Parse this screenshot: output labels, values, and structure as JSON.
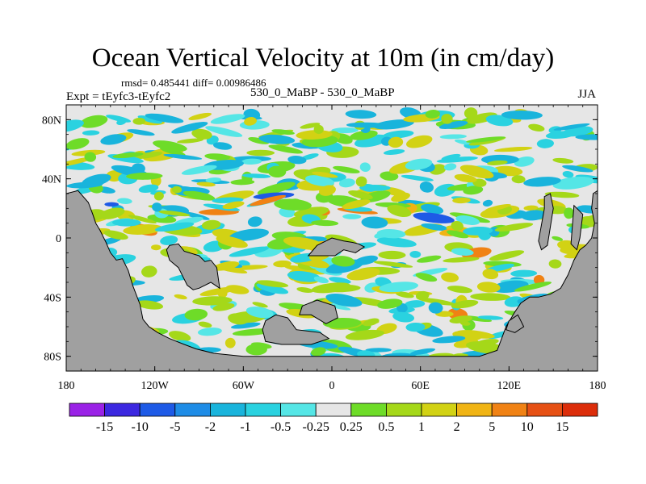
{
  "chart_data": {
    "type": "heatmap",
    "title": "Ocean Vertical Velocity at 10m (in cm/day)",
    "stats_line": "rmsd= 0.485441 diff= 0.00986486",
    "experiment_label": "Expt = tEyfc3-tEyfc2",
    "case_label": "530_0_MaBP - 530_0_MaBP",
    "season": "JJA",
    "x_range": [
      -180,
      180
    ],
    "y_range": [
      -90,
      90
    ],
    "x_ticks": [
      {
        "value": -180,
        "label": "180"
      },
      {
        "value": -120,
        "label": "120W"
      },
      {
        "value": -60,
        "label": "60W"
      },
      {
        "value": 0,
        "label": "0"
      },
      {
        "value": 60,
        "label": "60E"
      },
      {
        "value": 120,
        "label": "120E"
      },
      {
        "value": 180,
        "label": "180"
      }
    ],
    "y_ticks": [
      {
        "value": 80,
        "label": "80N"
      },
      {
        "value": 40,
        "label": "40N"
      },
      {
        "value": 0,
        "label": "0"
      },
      {
        "value": -40,
        "label": "40S"
      },
      {
        "value": -80,
        "label": "80S"
      }
    ],
    "colorbar": {
      "levels": [
        "-15",
        "-10",
        "-5",
        "-2",
        "-1",
        "-0.5",
        "-0.25",
        "0.25",
        "0.5",
        "1",
        "2",
        "5",
        "10",
        "15"
      ],
      "colors": [
        "#9a22e6",
        "#3c28e0",
        "#1e5ae6",
        "#1e8ce6",
        "#19b4dc",
        "#2ad2e0",
        "#55e6e6",
        "#e6e6e6",
        "#6edc28",
        "#a5d819",
        "#d2d214",
        "#f0b414",
        "#f08214",
        "#e65014",
        "#dc2d0a"
      ]
    },
    "land_color": "#a0a0a0",
    "land_polygons": [
      [
        [
          -180,
          -90
        ],
        [
          -180,
          30
        ],
        [
          -172,
          32
        ],
        [
          -165,
          24
        ],
        [
          -162,
          16
        ],
        [
          -160,
          10
        ],
        [
          -157,
          5
        ],
        [
          -153,
          -3
        ],
        [
          -150,
          -10
        ],
        [
          -146,
          -15
        ],
        [
          -142,
          -14
        ],
        [
          -138,
          -22
        ],
        [
          -135,
          -32
        ],
        [
          -130,
          -45
        ],
        [
          -128,
          -55
        ],
        [
          -124,
          -60
        ],
        [
          -118,
          -64
        ],
        [
          -110,
          -68
        ],
        [
          -100,
          -72
        ],
        [
          -92,
          -75
        ],
        [
          -80,
          -78
        ],
        [
          -60,
          -80
        ],
        [
          -40,
          -80
        ],
        [
          -20,
          -80
        ],
        [
          0,
          -80
        ],
        [
          20,
          -80
        ],
        [
          40,
          -80
        ],
        [
          60,
          -80
        ],
        [
          80,
          -80
        ],
        [
          100,
          -80
        ],
        [
          112,
          -76
        ],
        [
          115,
          -68
        ],
        [
          118,
          -60
        ],
        [
          124,
          -50
        ],
        [
          128,
          -44
        ],
        [
          134,
          -40
        ],
        [
          140,
          -40
        ],
        [
          148,
          -38
        ],
        [
          155,
          -34
        ],
        [
          160,
          -25
        ],
        [
          164,
          -15
        ],
        [
          168,
          -8
        ],
        [
          172,
          -5
        ],
        [
          176,
          0
        ],
        [
          178,
          10
        ],
        [
          176,
          20
        ],
        [
          177,
          30
        ],
        [
          180,
          32
        ],
        [
          180,
          -90
        ]
      ],
      [
        [
          -110,
          -5
        ],
        [
          -104,
          -4
        ],
        [
          -100,
          -9
        ],
        [
          -90,
          -12
        ],
        [
          -86,
          -16
        ],
        [
          -82,
          -15
        ],
        [
          -78,
          -20
        ],
        [
          -76,
          -34
        ],
        [
          -82,
          -30
        ],
        [
          -90,
          -34
        ],
        [
          -94,
          -35
        ],
        [
          -98,
          -32
        ],
        [
          -104,
          -20
        ],
        [
          -110,
          -15
        ],
        [
          -112,
          -8
        ]
      ],
      [
        [
          -45,
          -56
        ],
        [
          -38,
          -52
        ],
        [
          -30,
          -54
        ],
        [
          -24,
          -62
        ],
        [
          -8,
          -64
        ],
        [
          -2,
          -68
        ],
        [
          -14,
          -72
        ],
        [
          -34,
          -72
        ],
        [
          -45,
          -70
        ],
        [
          -47,
          -62
        ]
      ],
      [
        [
          -20,
          -46
        ],
        [
          -10,
          -42
        ],
        [
          2,
          -46
        ],
        [
          4,
          -54
        ],
        [
          -4,
          -58
        ],
        [
          -14,
          -52
        ],
        [
          -22,
          -52
        ]
      ],
      [
        [
          -10,
          -5
        ],
        [
          0,
          0
        ],
        [
          8,
          -2
        ],
        [
          14,
          -3
        ],
        [
          18,
          -4
        ],
        [
          22,
          -6
        ],
        [
          16,
          -10
        ],
        [
          8,
          -8
        ],
        [
          2,
          -12
        ],
        [
          -8,
          -12
        ],
        [
          -16,
          -12
        ]
      ],
      [
        [
          144,
          28
        ],
        [
          148,
          30
        ],
        [
          150,
          20
        ],
        [
          146,
          -5
        ],
        [
          142,
          -8
        ],
        [
          140,
          -2
        ],
        [
          144,
          20
        ]
      ],
      [
        [
          164,
          22
        ],
        [
          170,
          16
        ],
        [
          168,
          0
        ],
        [
          166,
          -8
        ],
        [
          162,
          -4
        ]
      ],
      [
        [
          120,
          -56
        ],
        [
          126,
          -52
        ],
        [
          130,
          -60
        ],
        [
          124,
          -64
        ],
        [
          118,
          -62
        ]
      ]
    ],
    "colored_cells_note": "Scattered contour-filled patches; values mostly between -1 and 2 cm/day"
  }
}
